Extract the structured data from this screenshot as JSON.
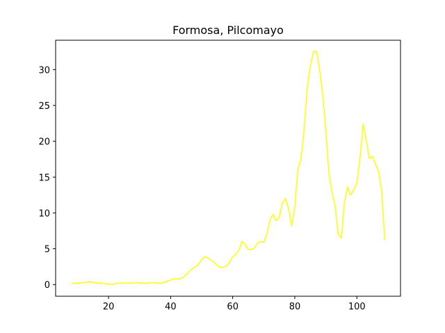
{
  "chart_data": {
    "type": "line",
    "title": "Formosa, Pilcomayo",
    "x": [
      8,
      9,
      10,
      11,
      12,
      13,
      14,
      15,
      16,
      17,
      18,
      19,
      20,
      21,
      22,
      23,
      24,
      25,
      26,
      27,
      28,
      29,
      30,
      31,
      32,
      33,
      34,
      35,
      36,
      37,
      38,
      39,
      40,
      41,
      42,
      43,
      44,
      45,
      46,
      47,
      48,
      49,
      50,
      51,
      52,
      53,
      54,
      55,
      56,
      57,
      58,
      59,
      60,
      61,
      62,
      63,
      64,
      65,
      66,
      67,
      68,
      69,
      70,
      71,
      72,
      73,
      74,
      75,
      76,
      77,
      78,
      79,
      80,
      81,
      82,
      83,
      84,
      85,
      86,
      87,
      88,
      89,
      90,
      91,
      92,
      93,
      94,
      95,
      96,
      97,
      98,
      99,
      100,
      101,
      102,
      103,
      104,
      105,
      106,
      107,
      108,
      109
    ],
    "values": [
      0.1,
      0.2,
      0.2,
      0.2,
      0.3,
      0.3,
      0.4,
      0.3,
      0.2,
      0.2,
      0.2,
      0.1,
      0.1,
      0.0,
      0.1,
      0.2,
      0.2,
      0.2,
      0.2,
      0.2,
      0.2,
      0.3,
      0.2,
      0.2,
      0.2,
      0.2,
      0.3,
      0.2,
      0.2,
      0.2,
      0.3,
      0.5,
      0.6,
      0.8,
      0.8,
      0.8,
      1.0,
      1.4,
      1.8,
      2.2,
      2.5,
      2.8,
      3.5,
      3.9,
      3.7,
      3.4,
      3.1,
      2.7,
      2.4,
      2.4,
      2.6,
      3.1,
      3.9,
      4.2,
      4.8,
      6.0,
      5.6,
      4.9,
      4.9,
      5.1,
      5.8,
      6.0,
      5.9,
      7.0,
      9.0,
      9.8,
      8.9,
      9.4,
      11.4,
      12.0,
      10.6,
      8.2,
      10.8,
      16.2,
      17.5,
      21.5,
      27.5,
      30.5,
      32.5,
      32.5,
      30.0,
      26.5,
      21.5,
      15.5,
      12.8,
      11.0,
      7.0,
      6.5,
      11.5,
      13.6,
      12.5,
      13.2,
      14.2,
      17.5,
      22.4,
      20.2,
      17.6,
      17.9,
      16.8,
      15.8,
      13.0,
      6.2
    ],
    "color": "#ffff00",
    "xlim": [
      2.95,
      114.05
    ],
    "xticks": [
      20,
      40,
      60,
      80,
      100
    ],
    "ylim": [
      -1.625,
      34.1
    ],
    "yticks": [
      0,
      5,
      10,
      15,
      20,
      25,
      30
    ],
    "grid": false
  }
}
